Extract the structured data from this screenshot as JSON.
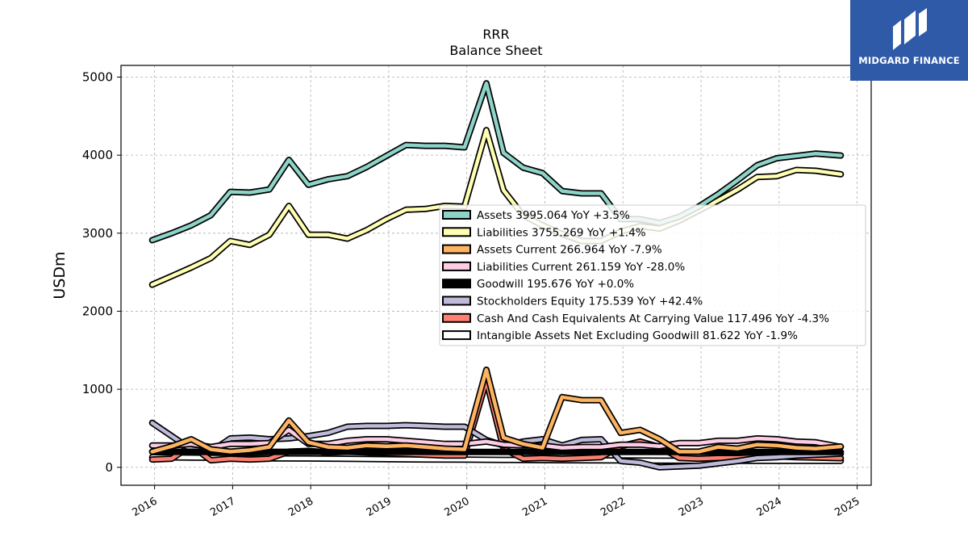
{
  "logo": {
    "text": "MIDGARD FINANCE",
    "color": "#2f5aa8"
  },
  "chart_data": {
    "type": "line",
    "title": "RRR",
    "subtitle": "Balance  Sheet",
    "ylabel": "USDm",
    "xlabel": "",
    "ylim": [
      -230,
      5150
    ],
    "xlim": [
      2015.57,
      2025.18
    ],
    "yticks": [
      0,
      1000,
      2000,
      3000,
      4000,
      5000
    ],
    "xticks": [
      2016,
      2017,
      2018,
      2019,
      2020,
      2021,
      2022,
      2023,
      2024,
      2025
    ],
    "grid": true,
    "legend_position": "center-right",
    "series": [
      {
        "name": "Assets",
        "legend": "Assets  3995.064 YoY +3.5%",
        "color": "#8dd3c7",
        "x": [
          2015.97,
          2016.22,
          2016.47,
          2016.72,
          2016.97,
          2017.22,
          2017.47,
          2017.72,
          2017.97,
          2018.22,
          2018.47,
          2018.72,
          2018.97,
          2019.22,
          2019.47,
          2019.72,
          2019.97,
          2020.25,
          2020.47,
          2020.72,
          2020.97,
          2021.22,
          2021.47,
          2021.72,
          2021.97,
          2022.22,
          2022.47,
          2022.72,
          2022.97,
          2023.22,
          2023.47,
          2023.72,
          2023.97,
          2024.22,
          2024.47,
          2024.79
        ],
        "values": [
          2910,
          3000,
          3100,
          3230,
          3530,
          3520,
          3560,
          3940,
          3620,
          3690,
          3730,
          3850,
          3990,
          4130,
          4120,
          4120,
          4100,
          4920,
          4030,
          3840,
          3770,
          3540,
          3510,
          3510,
          3180,
          3180,
          3130,
          3210,
          3340,
          3500,
          3680,
          3870,
          3960,
          3990,
          4020,
          3995
        ]
      },
      {
        "name": "Liabilities",
        "legend": "Liabilities  3755.269 YoY +1.4%",
        "color": "#ffffb3",
        "x": [
          2015.97,
          2016.22,
          2016.47,
          2016.72,
          2016.97,
          2017.22,
          2017.47,
          2017.72,
          2017.97,
          2018.22,
          2018.47,
          2018.72,
          2018.97,
          2019.22,
          2019.47,
          2019.72,
          2019.97,
          2020.25,
          2020.47,
          2020.72,
          2020.97,
          2021.22,
          2021.47,
          2021.72,
          2021.97,
          2022.22,
          2022.47,
          2022.72,
          2022.97,
          2023.22,
          2023.47,
          2023.72,
          2023.97,
          2024.22,
          2024.47,
          2024.79
        ],
        "values": [
          2340,
          2450,
          2560,
          2680,
          2900,
          2850,
          2980,
          3350,
          2980,
          2980,
          2930,
          3040,
          3180,
          3300,
          3310,
          3350,
          3340,
          4320,
          3550,
          3230,
          3100,
          2990,
          2900,
          2900,
          3020,
          3090,
          3060,
          3160,
          3290,
          3420,
          3560,
          3720,
          3730,
          3810,
          3800,
          3755
        ]
      },
      {
        "name": "Assets Current",
        "legend": "Assets Current  266.964 YoY -7.9%",
        "color": "#fdb462",
        "x": [
          2015.97,
          2016.22,
          2016.47,
          2016.72,
          2016.97,
          2017.22,
          2017.47,
          2017.72,
          2017.97,
          2018.22,
          2018.47,
          2018.72,
          2018.97,
          2019.22,
          2019.47,
          2019.72,
          2019.97,
          2020.25,
          2020.47,
          2020.72,
          2020.97,
          2021.22,
          2021.47,
          2021.72,
          2021.97,
          2022.22,
          2022.47,
          2022.72,
          2022.97,
          2023.22,
          2023.47,
          2023.72,
          2023.97,
          2024.22,
          2024.47,
          2024.79
        ],
        "values": [
          200,
          270,
          360,
          230,
          200,
          220,
          260,
          600,
          320,
          260,
          250,
          280,
          270,
          280,
          260,
          240,
          230,
          1250,
          380,
          300,
          250,
          900,
          860,
          860,
          440,
          480,
          360,
          200,
          200,
          260,
          240,
          290,
          280,
          250,
          240,
          267
        ]
      },
      {
        "name": "Liabilities Current",
        "legend": "Liabilities Current  261.159 YoY -28.0%",
        "color": "#fccde5",
        "x": [
          2015.97,
          2016.22,
          2016.47,
          2016.72,
          2016.97,
          2017.22,
          2017.47,
          2017.72,
          2017.97,
          2018.22,
          2018.47,
          2018.72,
          2018.97,
          2019.22,
          2019.47,
          2019.72,
          2019.97,
          2020.25,
          2020.47,
          2020.72,
          2020.97,
          2021.22,
          2021.47,
          2021.72,
          2021.97,
          2022.22,
          2022.47,
          2022.72,
          2022.97,
          2023.22,
          2023.47,
          2023.72,
          2023.97,
          2024.22,
          2024.47,
          2024.79
        ],
        "values": [
          280,
          280,
          300,
          260,
          300,
          300,
          310,
          480,
          300,
          300,
          340,
          360,
          360,
          340,
          320,
          300,
          300,
          330,
          290,
          280,
          280,
          250,
          260,
          260,
          290,
          290,
          270,
          310,
          310,
          340,
          340,
          370,
          360,
          330,
          320,
          261
        ]
      },
      {
        "name": "Goodwill",
        "legend": "Goodwill  195.676 YoY +0.0%",
        "color": "#000000",
        "x": [
          2015.97,
          2016.47,
          2016.97,
          2017.47,
          2017.97,
          2018.47,
          2018.97,
          2019.47,
          2019.97,
          2020.47,
          2020.97,
          2021.47,
          2021.97,
          2022.47,
          2022.97,
          2023.47,
          2023.97,
          2024.47,
          2024.79
        ],
        "values": [
          200,
          198,
          198,
          198,
          198,
          198,
          198,
          198,
          196,
          196,
          196,
          196,
          196,
          196,
          196,
          196,
          196,
          196,
          196
        ]
      },
      {
        "name": "Stockholders Equity",
        "legend": "Stockholders Equity  175.539 YoY +42.4%",
        "color": "#bebada",
        "x": [
          2015.97,
          2016.22,
          2016.47,
          2016.72,
          2016.97,
          2017.22,
          2017.47,
          2017.72,
          2017.97,
          2018.22,
          2018.47,
          2018.72,
          2018.97,
          2019.22,
          2019.47,
          2019.72,
          2019.97,
          2020.25,
          2020.47,
          2020.72,
          2020.97,
          2021.22,
          2021.47,
          2021.72,
          2021.97,
          2022.22,
          2022.47,
          2022.72,
          2022.97,
          2023.22,
          2023.47,
          2023.72,
          2023.97,
          2024.22,
          2024.47,
          2024.79
        ],
        "values": [
          570,
          400,
          230,
          200,
          370,
          380,
          360,
          370,
          400,
          440,
          520,
          530,
          530,
          540,
          530,
          520,
          520,
          350,
          280,
          330,
          360,
          280,
          350,
          360,
          80,
          60,
          0,
          10,
          20,
          50,
          80,
          120,
          130,
          150,
          160,
          176
        ]
      },
      {
        "name": "Cash And Cash Equivalents At Carrying Value",
        "legend": "Cash And Cash Equivalents At Carrying Value  117.496 YoY -4.3%",
        "color": "#fb8072",
        "x": [
          2015.97,
          2016.22,
          2016.47,
          2016.72,
          2016.97,
          2017.22,
          2017.47,
          2017.72,
          2017.97,
          2018.22,
          2018.47,
          2018.72,
          2018.97,
          2019.22,
          2019.47,
          2019.72,
          2019.97,
          2020.25,
          2020.47,
          2020.72,
          2020.97,
          2021.22,
          2021.47,
          2021.72,
          2021.97,
          2022.22,
          2022.47,
          2022.72,
          2022.97,
          2023.22,
          2023.47,
          2023.72,
          2023.97,
          2024.22,
          2024.47,
          2024.79
        ],
        "values": [
          100,
          110,
          280,
          90,
          110,
          100,
          110,
          200,
          210,
          190,
          200,
          190,
          180,
          170,
          160,
          150,
          150,
          1110,
          240,
          110,
          120,
          110,
          120,
          130,
          270,
          330,
          260,
          120,
          110,
          120,
          120,
          130,
          140,
          130,
          125,
          117
        ]
      },
      {
        "name": "Intangible Assets Net Excluding Goodwill",
        "legend": "Intangible Assets Net Excluding Goodwill  81.622 YoY -1.9%",
        "color": "#ffffff",
        "x": [
          2015.97,
          2016.47,
          2016.97,
          2017.47,
          2017.97,
          2018.47,
          2018.97,
          2019.47,
          2019.97,
          2020.47,
          2020.97,
          2021.47,
          2021.97,
          2022.47,
          2022.97,
          2023.47,
          2023.97,
          2024.47,
          2024.79
        ],
        "values": [
          130,
          125,
          120,
          115,
          112,
          108,
          104,
          100,
          98,
          95,
          92,
          90,
          88,
          86,
          85,
          84,
          83,
          82,
          82
        ]
      }
    ]
  }
}
